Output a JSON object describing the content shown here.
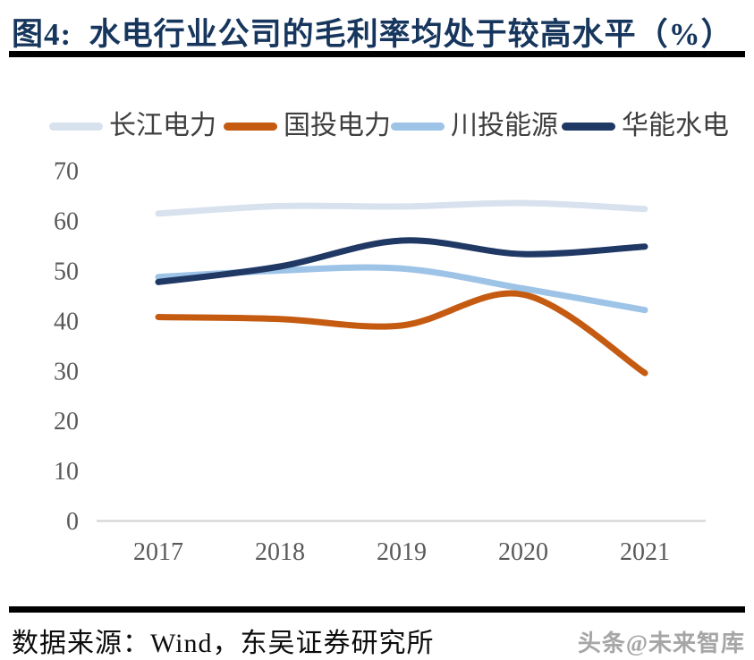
{
  "header": {
    "title": "图4:  水电行业公司的毛利率均处于较高水平（%）"
  },
  "chart_data": {
    "type": "line",
    "title": "水电行业公司的毛利率均处于较高水平（%）",
    "categories": [
      "2017",
      "2018",
      "2019",
      "2020",
      "2021"
    ],
    "series": [
      {
        "name": "长江电力",
        "color": "#D8E2EE",
        "values": [
          61.4,
          62.9,
          62.8,
          63.5,
          62.3
        ]
      },
      {
        "name": "国投电力",
        "color": "#C55A11",
        "values": [
          40.7,
          40.3,
          39.0,
          45.2,
          29.5
        ]
      },
      {
        "name": "川投能源",
        "color": "#9DC3E6",
        "values": [
          48.7,
          50.0,
          50.4,
          46.4,
          42.1
        ]
      },
      {
        "name": "华能水电",
        "color": "#1F3864",
        "values": [
          47.7,
          50.8,
          56.0,
          53.3,
          54.8
        ]
      }
    ],
    "ylim": [
      0,
      70
    ],
    "yticks": [
      0,
      10,
      20,
      30,
      40,
      50,
      60,
      70
    ],
    "grid": "off",
    "legend_position": "top",
    "axis_color": "#D9D9D9",
    "tick_label_color": "#595959",
    "smooth_lines": true
  },
  "footer": {
    "source": "数据来源：Wind，东吴证券研究所",
    "watermark": "头条@未来智库"
  }
}
